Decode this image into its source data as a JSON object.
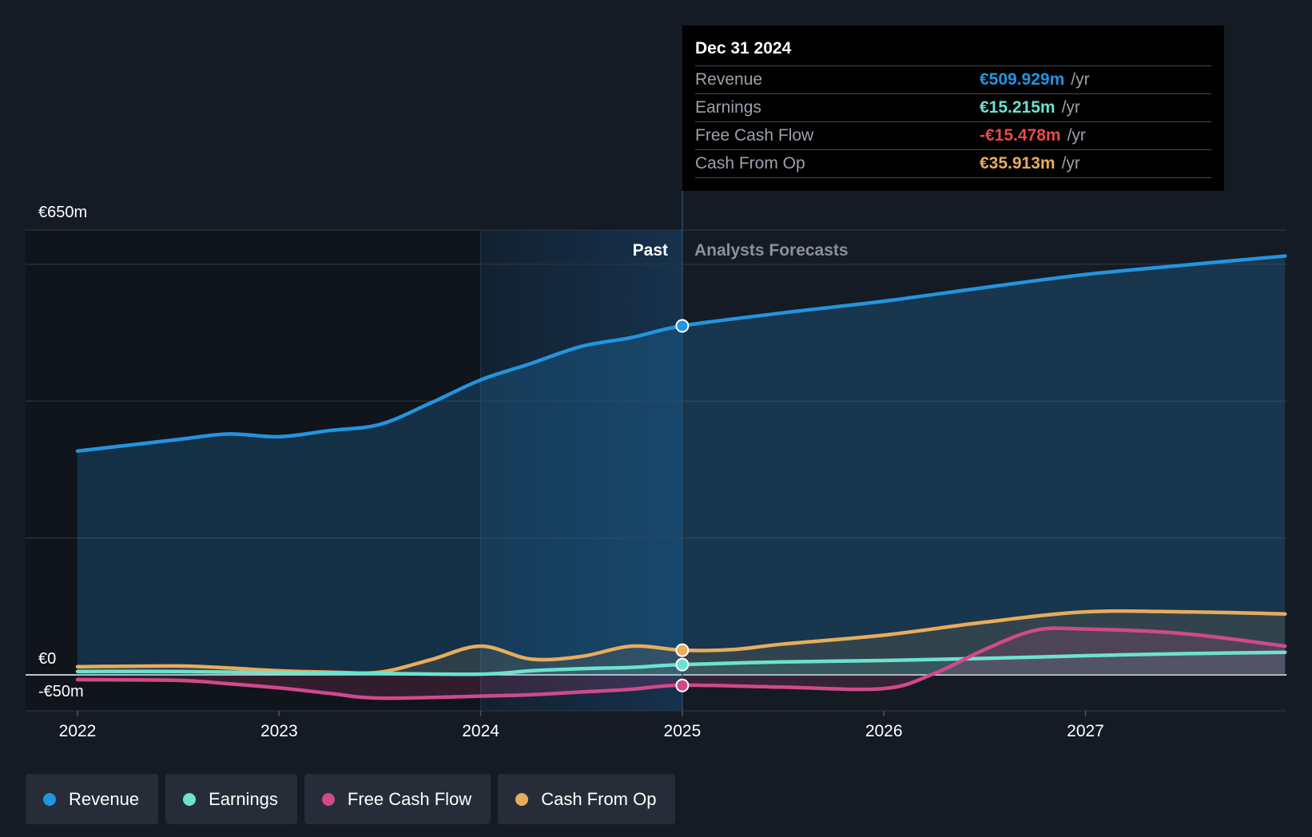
{
  "chart_data": {
    "type": "line",
    "title": "",
    "xlabel": "",
    "ylabel": "",
    "x_ticks": [
      "2022",
      "2023",
      "2024",
      "2025",
      "2026",
      "2027"
    ],
    "x_range": [
      2021.75,
      2027.99
    ],
    "ylim": [
      -50,
      650
    ],
    "y_tick_labels": [
      {
        "value": 650,
        "label": "€650m"
      },
      {
        "value": 0,
        "label": "€0"
      },
      {
        "value": -50,
        "label": "-€50m"
      }
    ],
    "past_label": "Past",
    "forecast_label": "Analysts Forecasts",
    "divider_x": 2025.0,
    "past_band_start": 2024.0,
    "series": [
      {
        "name": "Revenue",
        "key": "revenue",
        "color": "#2394df",
        "points": [
          [
            2022.0,
            327
          ],
          [
            2022.5,
            344
          ],
          [
            2022.75,
            352
          ],
          [
            2023.0,
            348
          ],
          [
            2023.25,
            357
          ],
          [
            2023.5,
            366
          ],
          [
            2023.75,
            397
          ],
          [
            2024.0,
            431
          ],
          [
            2024.25,
            455
          ],
          [
            2024.5,
            480
          ],
          [
            2024.75,
            493
          ],
          [
            2025.0,
            510
          ],
          [
            2025.5,
            529
          ],
          [
            2026.0,
            546
          ],
          [
            2026.5,
            566
          ],
          [
            2027.0,
            585
          ],
          [
            2027.5,
            599
          ],
          [
            2027.99,
            612
          ]
        ],
        "marker": 510
      },
      {
        "name": "Earnings",
        "key": "earnings",
        "color": "#6ce2cf",
        "points": [
          [
            2022.0,
            5
          ],
          [
            2022.5,
            5
          ],
          [
            2023.0,
            3
          ],
          [
            2023.5,
            2
          ],
          [
            2024.0,
            1
          ],
          [
            2024.25,
            6
          ],
          [
            2024.5,
            9
          ],
          [
            2024.75,
            11
          ],
          [
            2025.0,
            15
          ],
          [
            2025.5,
            19
          ],
          [
            2026.0,
            21
          ],
          [
            2026.5,
            24
          ],
          [
            2027.0,
            28
          ],
          [
            2027.5,
            31
          ],
          [
            2027.99,
            33
          ]
        ],
        "marker": 15
      },
      {
        "name": "Free Cash Flow",
        "key": "fcf",
        "color": "#cf4a8b",
        "points": [
          [
            2022.0,
            -7
          ],
          [
            2022.5,
            -8
          ],
          [
            2022.75,
            -13
          ],
          [
            2023.0,
            -19
          ],
          [
            2023.25,
            -27
          ],
          [
            2023.5,
            -34
          ],
          [
            2024.0,
            -31
          ],
          [
            2024.25,
            -29
          ],
          [
            2024.5,
            -25
          ],
          [
            2024.75,
            -21
          ],
          [
            2025.0,
            -15
          ],
          [
            2025.5,
            -18
          ],
          [
            2026.0,
            -20
          ],
          [
            2026.25,
            2
          ],
          [
            2026.5,
            37
          ],
          [
            2026.75,
            65
          ],
          [
            2027.0,
            67
          ],
          [
            2027.5,
            60
          ],
          [
            2027.99,
            42
          ]
        ],
        "marker": -15.478
      },
      {
        "name": "Cash From Op",
        "key": "cfo",
        "color": "#e8ac5d",
        "points": [
          [
            2022.0,
            12
          ],
          [
            2022.5,
            13
          ],
          [
            2022.75,
            10
          ],
          [
            2023.0,
            6
          ],
          [
            2023.25,
            4
          ],
          [
            2023.5,
            4
          ],
          [
            2023.75,
            22
          ],
          [
            2024.0,
            42
          ],
          [
            2024.25,
            23
          ],
          [
            2024.5,
            27
          ],
          [
            2024.75,
            42
          ],
          [
            2025.0,
            36
          ],
          [
            2025.25,
            37
          ],
          [
            2025.5,
            45
          ],
          [
            2026.0,
            58
          ],
          [
            2026.5,
            77
          ],
          [
            2027.0,
            92
          ],
          [
            2027.5,
            92
          ],
          [
            2027.99,
            89
          ]
        ],
        "marker": 36
      }
    ]
  },
  "tooltip": {
    "date": "Dec 31 2024",
    "rows": [
      {
        "label": "Revenue",
        "value": "€509.929m",
        "unit": "/yr",
        "color": "#2394df"
      },
      {
        "label": "Earnings",
        "value": "€15.215m",
        "unit": "/yr",
        "color": "#6ce2cf"
      },
      {
        "label": "Free Cash Flow",
        "value": "-€15.478m",
        "unit": "/yr",
        "color": "#e64b4b"
      },
      {
        "label": "Cash From Op",
        "value": "€35.913m",
        "unit": "/yr",
        "color": "#e8ac5d"
      }
    ]
  },
  "legend": [
    {
      "label": "Revenue",
      "color": "#2394df"
    },
    {
      "label": "Earnings",
      "color": "#6ce2cf"
    },
    {
      "label": "Free Cash Flow",
      "color": "#cf4a8b"
    },
    {
      "label": "Cash From Op",
      "color": "#e8ac5d"
    }
  ]
}
